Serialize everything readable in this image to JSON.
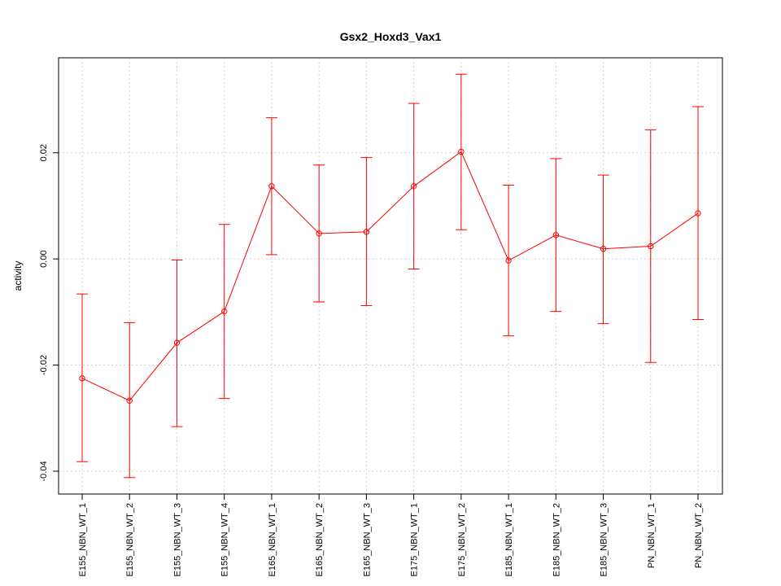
{
  "chart_data": {
    "type": "line",
    "title": "Gsx2_Hoxd3_Vax1",
    "xlabel": "",
    "ylabel": "activity",
    "categories": [
      "E155_NBN_WT_1",
      "E155_NBN_WT_2",
      "E155_NBN_WT_3",
      "E155_NBN_WT_4",
      "E165_NBN_WT_1",
      "E165_NBN_WT_2",
      "E165_NBN_WT_3",
      "E175_NBN_WT_1",
      "E175_NBN_WT_2",
      "E185_NBN_WT_1",
      "E185_NBN_WT_2",
      "E185_NBN_WT_3",
      "PN_NBN_WT_1",
      "PN_NBN_WT_2"
    ],
    "series": [
      {
        "values": [
          -0.0225,
          -0.0267,
          -0.0158,
          -0.0099,
          0.0137,
          0.0048,
          0.0051,
          0.0137,
          0.0202,
          -0.0003,
          0.0045,
          0.0019,
          0.0024,
          0.0086
        ],
        "upper": [
          -0.0066,
          -0.012,
          -0.0002,
          0.0065,
          0.0266,
          0.0177,
          0.0191,
          0.0293,
          0.0348,
          0.0139,
          0.0189,
          0.0158,
          0.0243,
          0.0287
        ],
        "lower": [
          -0.0382,
          -0.0412,
          -0.0316,
          -0.0263,
          0.0008,
          -0.0081,
          -0.0088,
          -0.0019,
          0.0055,
          -0.0145,
          -0.0099,
          -0.0122,
          -0.0195,
          -0.0114
        ],
        "color": "#ff0000"
      }
    ],
    "yticks": [
      -0.04,
      -0.02,
      0.0,
      0.02
    ],
    "ytick_labels": [
      "-0.04",
      "-0.02",
      "0.00",
      "0.02"
    ],
    "ylim": [
      -0.0443,
      0.0379
    ],
    "grid": true,
    "legend": "none"
  }
}
